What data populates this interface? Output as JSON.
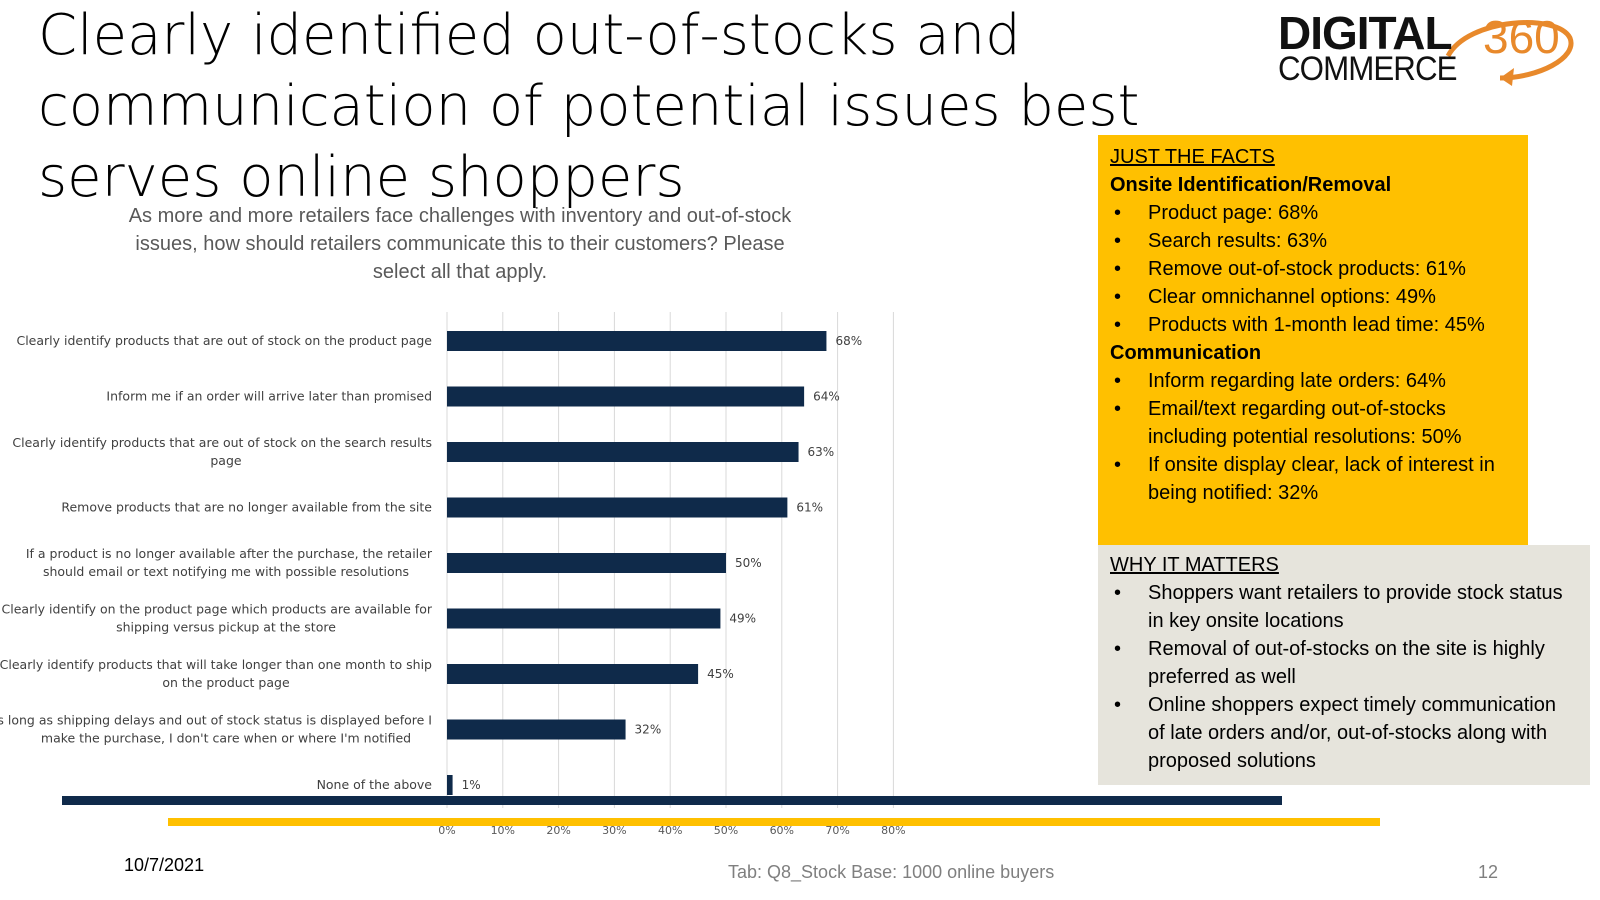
{
  "slide": {
    "title_lines": [
      "Clearly identified out-of-stocks and",
      "communication of potential issues best",
      "serves online shoppers"
    ],
    "subtitle_lines": [
      "As more and more retailers face challenges with inventory and out-of-stock",
      "issues, how should retailers communicate this to their customers? Please",
      "select all that apply."
    ],
    "date": "10/7/2021",
    "source": "Tab:  Q8_Stock   Base:  1000 online buyers",
    "page_number": "12"
  },
  "logo": {
    "line1": "DIGITAL",
    "line2": "COMMERCE",
    "line3": "360",
    "accent_color": "#E8892B"
  },
  "facts": {
    "heading": "JUST THE FACTS",
    "section1_title": "Onsite Identification/Removal",
    "section1_items": [
      "Product page:  68%",
      "Search results:  63%",
      "Remove out-of-stock products:  61%",
      "Clear omnichannel options:  49%",
      "Products with 1-month lead time:  45%"
    ],
    "section2_title": "Communication",
    "section2_items": [
      "Inform regarding late orders:  64%",
      "Email/text regarding out-of-stocks including potential resolutions:  50%",
      "If onsite display clear, lack of interest in being notified:  32%"
    ],
    "background_color": "#FFC000"
  },
  "why": {
    "heading": "WHY IT MATTERS",
    "items": [
      "Shoppers want retailers to provide stock status in key onsite locations",
      "Removal of out-of-stocks on the site is highly preferred as well",
      "Online shoppers expect timely communication of late orders and/or, out-of-stocks along with proposed solutions"
    ],
    "background_color": "#E6E4DC"
  },
  "chart_data": {
    "type": "bar",
    "orientation": "horizontal",
    "categories": [
      [
        "Clearly identify products that are out of stock on the product page"
      ],
      [
        "Inform me if an order will arrive later than promised"
      ],
      [
        "Clearly identify products that are out of stock on the search results",
        "page"
      ],
      [
        "Remove products that are no longer available from the site"
      ],
      [
        "If a product is no longer available after the purchase, the retailer",
        "should email or text notifying me with possible resolutions"
      ],
      [
        "Clearly identify on the product page which products are available for",
        "shipping versus pickup at the store"
      ],
      [
        "Clearly identify products that will take longer than one month to ship",
        "on the product page"
      ],
      [
        "As long as shipping delays and out of stock status is displayed before I",
        "make the purchase, I don't care when or where I'm notified"
      ],
      [
        "None of the above"
      ]
    ],
    "values": [
      68,
      64,
      63,
      61,
      50,
      49,
      45,
      32,
      1
    ],
    "value_labels": [
      "68%",
      "64%",
      "63%",
      "61%",
      "50%",
      "49%",
      "45%",
      "32%",
      "1%"
    ],
    "x_ticks": [
      "0%",
      "10%",
      "20%",
      "30%",
      "40%",
      "50%",
      "60%",
      "70%",
      "80%"
    ],
    "xlim": [
      0,
      80
    ],
    "bar_color": "#0F2A4A",
    "accent_line_color": "#FFC000",
    "grid": true
  }
}
